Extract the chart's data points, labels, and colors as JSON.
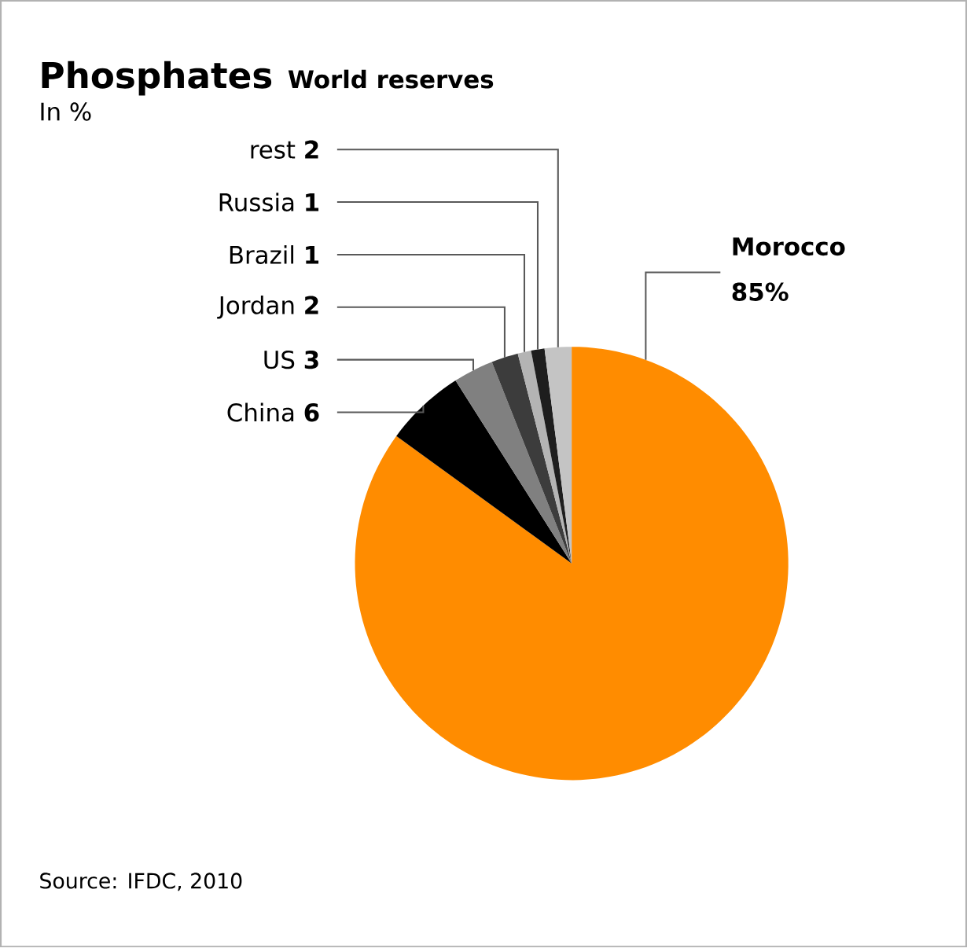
{
  "chart_data": {
    "type": "pie",
    "title": "Phosphates",
    "subtitle": "World reserves",
    "annotations": [
      "In %",
      "Source: IFDC, 2010"
    ],
    "categories": [
      "Morocco",
      "China",
      "US",
      "Jordan",
      "Brazil",
      "Russia",
      "rest"
    ],
    "values": [
      85,
      6,
      3,
      2,
      1,
      1,
      2
    ],
    "colors": [
      "#ff8c00",
      "#000000",
      "#808080",
      "#3c3c3c",
      "#b4b4b4",
      "#1e1e1e",
      "#c4c4c4"
    ],
    "value_labels": [
      "85%",
      "6",
      "3",
      "2",
      "1",
      "1",
      "2"
    ]
  }
}
